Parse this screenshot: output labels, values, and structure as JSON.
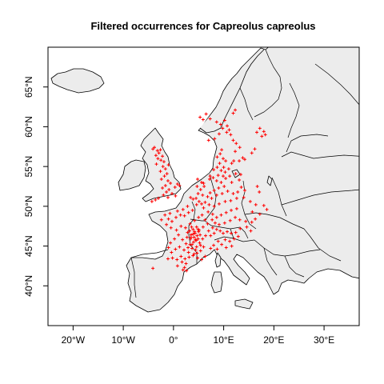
{
  "title": "Filtered occurrences for Capreolus capreolus",
  "colors": {
    "points": "#ff0000",
    "land": "#ececec",
    "sea": "#ffffff",
    "outline": "#000000"
  },
  "chart_data": {
    "type": "scatter",
    "title": "Filtered occurrences for Capreolus capreolus",
    "xlabel": "",
    "ylabel": "",
    "xlim": [
      -25,
      37
    ],
    "ylim": [
      35,
      70
    ],
    "x_ticks": [
      {
        "value": -20,
        "label": "20°W"
      },
      {
        "value": -10,
        "label": "10°W"
      },
      {
        "value": 0,
        "label": "0°"
      },
      {
        "value": 10,
        "label": "10°E"
      },
      {
        "value": 20,
        "label": "20°E"
      },
      {
        "value": 30,
        "label": "30°E"
      }
    ],
    "y_ticks": [
      {
        "value": 40,
        "label": "40°N"
      },
      {
        "value": 45,
        "label": "45°N"
      },
      {
        "value": 50,
        "label": "50°N"
      },
      {
        "value": 55,
        "label": "55°N"
      },
      {
        "value": 60,
        "label": "60°N"
      },
      {
        "value": 65,
        "label": "65°N"
      }
    ],
    "grid": false,
    "marker": "+",
    "series": [
      {
        "color": "#ff0000",
        "points": [
          [
            -3.8,
            57.4
          ],
          [
            -3.2,
            57.0
          ],
          [
            -2.6,
            57.1
          ],
          [
            -2.9,
            56.7
          ],
          [
            -3.5,
            56.4
          ],
          [
            -2.2,
            56.3
          ],
          [
            -3.1,
            56.0
          ],
          [
            -2.5,
            55.8
          ],
          [
            -1.9,
            55.6
          ],
          [
            -3.4,
            55.3
          ],
          [
            -2.1,
            55.0
          ],
          [
            -1.6,
            54.7
          ],
          [
            -2.6,
            54.4
          ],
          [
            -1.3,
            54.1
          ],
          [
            -1.8,
            53.8
          ],
          [
            -2.4,
            53.4
          ],
          [
            -1.1,
            53.2
          ],
          [
            -0.6,
            52.9
          ],
          [
            -1.6,
            52.6
          ],
          [
            -2.2,
            52.3
          ],
          [
            -0.9,
            52.1
          ],
          [
            -1.4,
            51.8
          ],
          [
            -0.3,
            51.6
          ],
          [
            -2.0,
            51.4
          ],
          [
            -1.1,
            51.1
          ],
          [
            0.4,
            51.3
          ],
          [
            -3.0,
            51.0
          ],
          [
            -4.3,
            50.6
          ],
          [
            -3.6,
            50.8
          ],
          [
            0.3,
            52.4
          ],
          [
            0.8,
            52.8
          ],
          [
            1.2,
            52.6
          ],
          [
            -1.0,
            55.2
          ],
          [
            -4.1,
            57.2
          ],
          [
            5.3,
            61.2
          ],
          [
            5.9,
            60.9
          ],
          [
            6.5,
            61.6
          ],
          [
            7.3,
            61.0
          ],
          [
            8.6,
            60.6
          ],
          [
            9.4,
            60.3
          ],
          [
            10.2,
            60.8
          ],
          [
            10.7,
            60.1
          ],
          [
            11.1,
            59.6
          ],
          [
            10.6,
            59.3
          ],
          [
            11.4,
            59.0
          ],
          [
            9.8,
            59.8
          ],
          [
            8.2,
            58.5
          ],
          [
            7.0,
            58.3
          ],
          [
            9.1,
            59.1
          ],
          [
            11.9,
            61.7
          ],
          [
            12.3,
            62.1
          ],
          [
            18.0,
            59.4
          ],
          [
            18.3,
            59.0
          ],
          [
            17.6,
            58.8
          ],
          [
            17.2,
            59.8
          ],
          [
            16.6,
            59.3
          ],
          [
            11.9,
            58.3
          ],
          [
            12.5,
            57.9
          ],
          [
            13.2,
            57.4
          ],
          [
            12.3,
            56.9
          ],
          [
            13.8,
            56.1
          ],
          [
            13.1,
            55.7
          ],
          [
            14.2,
            55.9
          ],
          [
            15.6,
            56.7
          ],
          [
            16.2,
            57.2
          ],
          [
            9.6,
            57.1
          ],
          [
            9.3,
            56.6
          ],
          [
            8.7,
            56.2
          ],
          [
            9.9,
            56.0
          ],
          [
            10.4,
            55.7
          ],
          [
            9.2,
            55.4
          ],
          [
            11.6,
            55.4
          ],
          [
            12.0,
            55.7
          ],
          [
            10.0,
            54.9
          ],
          [
            7.2,
            53.4
          ],
          [
            7.9,
            53.6
          ],
          [
            8.6,
            53.2
          ],
          [
            9.5,
            53.0
          ],
          [
            10.4,
            53.5
          ],
          [
            11.2,
            53.8
          ],
          [
            12.4,
            54.1
          ],
          [
            13.4,
            54.0
          ],
          [
            13.1,
            53.3
          ],
          [
            11.6,
            53.0
          ],
          [
            10.1,
            52.5
          ],
          [
            9.0,
            52.3
          ],
          [
            8.1,
            52.0
          ],
          [
            7.3,
            51.7
          ],
          [
            6.8,
            51.2
          ],
          [
            7.6,
            51.0
          ],
          [
            8.6,
            51.4
          ],
          [
            9.7,
            51.6
          ],
          [
            10.8,
            51.9
          ],
          [
            11.9,
            51.6
          ],
          [
            12.8,
            51.8
          ],
          [
            13.5,
            52.4
          ],
          [
            14.2,
            52.0
          ],
          [
            14.0,
            51.1
          ],
          [
            12.6,
            51.0
          ],
          [
            11.4,
            50.7
          ],
          [
            10.3,
            50.6
          ],
          [
            9.1,
            50.3
          ],
          [
            8.1,
            50.0
          ],
          [
            7.1,
            50.2
          ],
          [
            6.3,
            50.5
          ],
          [
            6.0,
            49.8
          ],
          [
            6.9,
            49.3
          ],
          [
            7.8,
            49.0
          ],
          [
            8.6,
            48.6
          ],
          [
            9.5,
            48.9
          ],
          [
            10.5,
            49.2
          ],
          [
            11.5,
            49.5
          ],
          [
            12.6,
            49.7
          ],
          [
            12.3,
            48.6
          ],
          [
            11.3,
            48.2
          ],
          [
            10.2,
            47.9
          ],
          [
            9.1,
            47.7
          ],
          [
            8.3,
            47.9
          ],
          [
            7.7,
            48.3
          ],
          [
            13.2,
            48.3
          ],
          [
            14.4,
            48.1
          ],
          [
            15.6,
            48.0
          ],
          [
            16.3,
            48.4
          ],
          [
            14.6,
            47.4
          ],
          [
            13.3,
            47.2
          ],
          [
            15.4,
            46.9
          ],
          [
            16.7,
            52.5
          ],
          [
            17.1,
            51.8
          ],
          [
            15.3,
            50.6
          ],
          [
            16.4,
            50.2
          ],
          [
            15.7,
            49.3
          ],
          [
            17.2,
            49.0
          ],
          [
            18.0,
            50.1
          ],
          [
            18.6,
            49.6
          ],
          [
            5.6,
            53.0
          ],
          [
            6.1,
            52.5
          ],
          [
            5.4,
            52.1
          ],
          [
            4.9,
            51.6
          ],
          [
            5.8,
            51.4
          ],
          [
            4.5,
            51.0
          ],
          [
            5.1,
            50.6
          ],
          [
            3.9,
            50.9
          ],
          [
            3.4,
            51.1
          ],
          [
            5.6,
            50.3
          ],
          [
            4.6,
            50.2
          ],
          [
            6.0,
            52.9
          ],
          [
            4.7,
            52.5
          ],
          [
            4.8,
            53.4
          ],
          [
            7.3,
            53.8
          ],
          [
            8.0,
            54.6
          ],
          [
            8.7,
            54.9
          ],
          [
            9.5,
            54.5
          ],
          [
            10.3,
            54.3
          ],
          [
            11.0,
            54.7
          ],
          [
            9.9,
            53.8
          ],
          [
            8.9,
            53.9
          ],
          [
            -1.7,
            48.9
          ],
          [
            -1.0,
            48.4
          ],
          [
            -0.3,
            48.1
          ],
          [
            0.5,
            48.6
          ],
          [
            1.4,
            48.9
          ],
          [
            2.2,
            48.8
          ],
          [
            3.0,
            49.2
          ],
          [
            3.8,
            49.5
          ],
          [
            1.9,
            49.6
          ],
          [
            2.8,
            50.0
          ],
          [
            0.8,
            49.4
          ],
          [
            -0.7,
            49.1
          ],
          [
            -2.4,
            48.3
          ],
          [
            -1.4,
            47.7
          ],
          [
            -0.5,
            47.3
          ],
          [
            0.6,
            47.0
          ],
          [
            1.5,
            47.5
          ],
          [
            2.4,
            47.3
          ],
          [
            3.3,
            47.8
          ],
          [
            4.2,
            48.2
          ],
          [
            5.0,
            48.6
          ],
          [
            5.7,
            48.9
          ],
          [
            6.3,
            48.3
          ],
          [
            6.8,
            47.8
          ],
          [
            5.9,
            47.4
          ],
          [
            5.1,
            47.0
          ],
          [
            4.3,
            46.6
          ],
          [
            3.5,
            46.4
          ],
          [
            2.7,
            46.1
          ],
          [
            1.8,
            45.8
          ],
          [
            1.0,
            46.4
          ],
          [
            0.2,
            45.9
          ],
          [
            -0.6,
            45.4
          ],
          [
            -1.0,
            44.8
          ],
          [
            -0.4,
            44.2
          ],
          [
            0.4,
            44.6
          ],
          [
            1.2,
            44.9
          ],
          [
            2.1,
            44.5
          ],
          [
            2.9,
            44.8
          ],
          [
            3.7,
            45.2
          ],
          [
            4.5,
            45.7
          ],
          [
            5.2,
            45.4
          ],
          [
            5.8,
            45.9
          ],
          [
            6.4,
            46.3
          ],
          [
            6.0,
            44.9
          ],
          [
            5.4,
            44.4
          ],
          [
            4.7,
            44.1
          ],
          [
            3.9,
            43.8
          ],
          [
            3.1,
            43.6
          ],
          [
            2.3,
            43.4
          ],
          [
            1.5,
            43.7
          ],
          [
            0.7,
            43.3
          ],
          [
            -0.2,
            43.5
          ],
          [
            -1.1,
            43.4
          ],
          [
            1.7,
            43.0
          ],
          [
            2.5,
            42.8
          ],
          [
            6.3,
            43.7
          ],
          [
            5.6,
            43.3
          ],
          [
            4.8,
            43.5
          ],
          [
            2.6,
            41.9
          ],
          [
            2.2,
            42.3
          ],
          [
            0.8,
            42.5
          ],
          [
            1.9,
            42.0
          ],
          [
            -4.1,
            42.2
          ],
          [
            3.2,
            46.9
          ],
          [
            3.9,
            47.1
          ],
          [
            4.6,
            47.4
          ],
          [
            3.6,
            47.4
          ],
          [
            4.1,
            46.1
          ],
          [
            4.7,
            46.3
          ],
          [
            3.4,
            45.9
          ],
          [
            4.0,
            45.5
          ],
          [
            4.6,
            44.9
          ],
          [
            3.3,
            45.2
          ],
          [
            2.8,
            46.7
          ],
          [
            4.2,
            46.8
          ],
          [
            5.3,
            46.4
          ],
          [
            4.9,
            45.9
          ],
          [
            3.7,
            44.7
          ],
          [
            4.4,
            44.5
          ],
          [
            2.5,
            45.3
          ],
          [
            3.0,
            44.2
          ],
          [
            4.1,
            44.0
          ],
          [
            5.0,
            46.8
          ],
          [
            3.5,
            46.1
          ],
          [
            4.4,
            45.8
          ],
          [
            3.9,
            46.5
          ],
          [
            4.9,
            47.1
          ],
          [
            5.4,
            45.1
          ],
          [
            7.0,
            46.9
          ],
          [
            7.8,
            47.3
          ],
          [
            8.6,
            47.1
          ],
          [
            9.3,
            46.9
          ],
          [
            8.1,
            46.6
          ],
          [
            7.4,
            46.3
          ],
          [
            9.9,
            46.6
          ],
          [
            10.7,
            46.8
          ],
          [
            11.5,
            46.6
          ],
          [
            12.4,
            46.7
          ],
          [
            10.3,
            45.8
          ],
          [
            11.2,
            45.6
          ],
          [
            12.1,
            45.9
          ],
          [
            8.9,
            45.6
          ],
          [
            8.0,
            45.1
          ],
          [
            7.4,
            44.7
          ],
          [
            9.6,
            45.2
          ],
          [
            11.6,
            45.0
          ],
          [
            8.7,
            44.6
          ],
          [
            10.5,
            44.8
          ],
          [
            12.9,
            46.2
          ]
        ]
      }
    ]
  }
}
